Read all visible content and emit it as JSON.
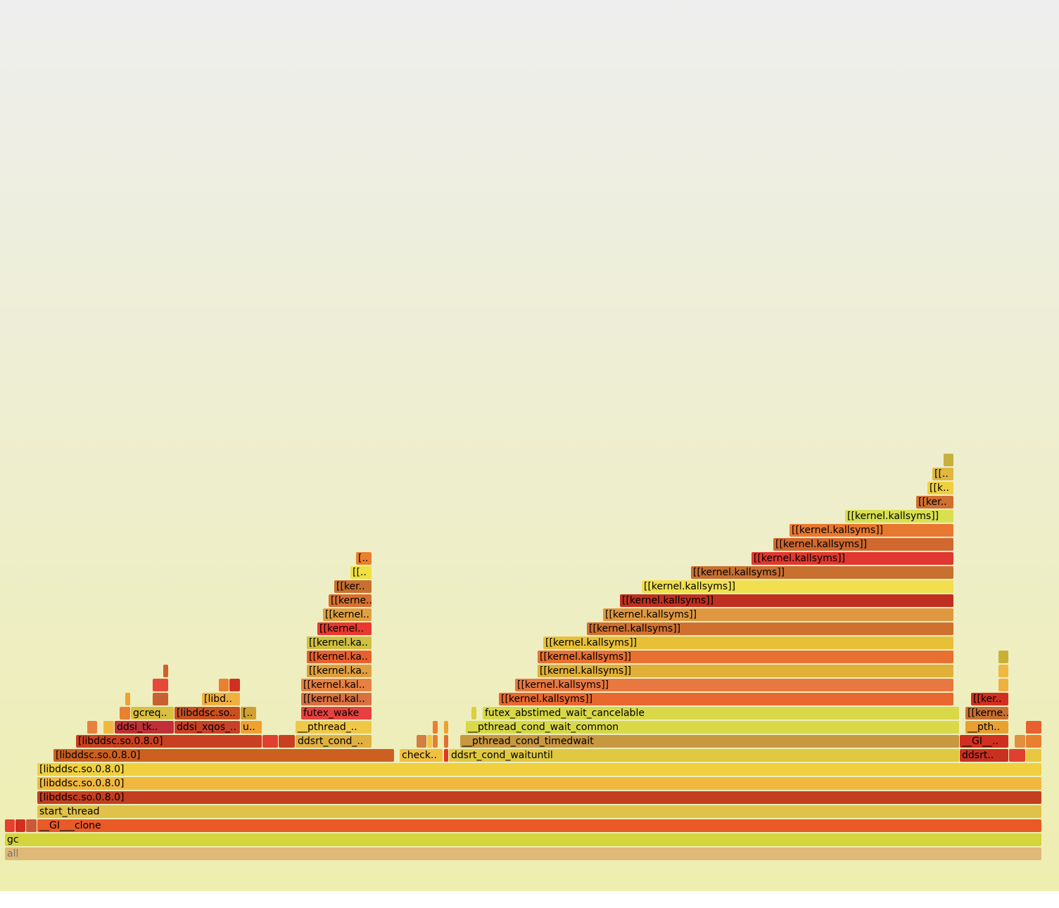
{
  "chart_data": {
    "type": "flamegraph",
    "xlim": [
      0,
      1474
    ],
    "frames": [
      {
        "depth": 0,
        "start": 0,
        "width": 1474,
        "color": "#e0b878",
        "name": "all"
      },
      {
        "depth": 1,
        "start": 0,
        "width": 1474,
        "color": "#d4d43c",
        "name": "gc"
      },
      {
        "depth": 2,
        "start": 0,
        "width": 15,
        "color": "#e84030"
      },
      {
        "depth": 2,
        "start": 15,
        "width": 15,
        "color": "#d03020"
      },
      {
        "depth": 2,
        "start": 30,
        "width": 16,
        "color": "#c85a38"
      },
      {
        "depth": 2,
        "start": 46,
        "width": 1428,
        "color": "#e85a28",
        "name": "__GI___clone"
      },
      {
        "depth": 3,
        "start": 46,
        "width": 1428,
        "color": "#e0c24a",
        "name": "start_thread"
      },
      {
        "depth": 4,
        "start": 46,
        "width": 1428,
        "color": "#c43e20",
        "name": "[libddsc.so.0.8.0]"
      },
      {
        "depth": 5,
        "start": 46,
        "width": 1428,
        "color": "#f0b840",
        "name": "[libddsc.so.0.8.0]"
      },
      {
        "depth": 6,
        "start": 46,
        "width": 1428,
        "color": "#f0d040",
        "name": "[libddsc.so.0.8.0]"
      },
      {
        "depth": 7,
        "start": 69,
        "width": 485,
        "color": "#cc6020",
        "name": "[libddsc.so.0.8.0]"
      },
      {
        "depth": 7,
        "start": 561,
        "width": 62,
        "color": "#f0c040",
        "name": "check.."
      },
      {
        "depth": 7,
        "start": 624,
        "width": 7,
        "color": "#e03828"
      },
      {
        "depth": 7,
        "start": 631,
        "width": 726,
        "color": "#e0c840",
        "name": "ddsrt_cond_waituntil"
      },
      {
        "depth": 7,
        "start": 1357,
        "width": 70,
        "color": "#c83020",
        "name": "ddsrt.."
      },
      {
        "depth": 7,
        "start": 1427,
        "width": 24,
        "color": "#e04030"
      },
      {
        "depth": 7,
        "start": 1451,
        "width": 23,
        "color": "#e8c840"
      },
      {
        "depth": 8,
        "start": 101,
        "width": 265,
        "color": "#c84020",
        "name": "[libddsc.so.0.8.0]"
      },
      {
        "depth": 8,
        "start": 366,
        "width": 23,
        "color": "#e04030"
      },
      {
        "depth": 8,
        "start": 389,
        "width": 24,
        "color": "#c84020"
      },
      {
        "depth": 8,
        "start": 413,
        "width": 109,
        "color": "#e0b040",
        "name": "ddsrt_cond_.."
      },
      {
        "depth": 8,
        "start": 585,
        "width": 15,
        "color": "#d08040"
      },
      {
        "depth": 8,
        "start": 600,
        "width": 8,
        "color": "#f0c840"
      },
      {
        "depth": 8,
        "start": 608,
        "width": 8,
        "color": "#e88030"
      },
      {
        "depth": 8,
        "start": 624,
        "width": 7,
        "color": "#e07030"
      },
      {
        "depth": 8,
        "start": 647,
        "width": 710,
        "color": "#c89840",
        "name": "__pthread_cond_timedwait"
      },
      {
        "depth": 8,
        "start": 1357,
        "width": 70,
        "color": "#d03020",
        "name": "__GI__.."
      },
      {
        "depth": 8,
        "start": 1435,
        "width": 16,
        "color": "#e09040"
      },
      {
        "depth": 8,
        "start": 1451,
        "width": 23,
        "color": "#e88030"
      },
      {
        "depth": 9,
        "start": 117,
        "width": 15,
        "color": "#e88040"
      },
      {
        "depth": 9,
        "start": 140,
        "width": 16,
        "color": "#f0b840"
      },
      {
        "depth": 9,
        "start": 156,
        "width": 85,
        "color": "#c03038",
        "name": "ddsi_tk.."
      },
      {
        "depth": 9,
        "start": 241,
        "width": 94,
        "color": "#c84028",
        "name": "ddsi_xqos_.."
      },
      {
        "depth": 9,
        "start": 335,
        "width": 31,
        "color": "#f0a030",
        "name": "u.."
      },
      {
        "depth": 9,
        "start": 413,
        "width": 109,
        "color": "#f0c848",
        "name": "__pthread_.."
      },
      {
        "depth": 9,
        "start": 608,
        "width": 8,
        "color": "#e88030"
      },
      {
        "depth": 9,
        "start": 624,
        "width": 7,
        "color": "#f0a030"
      },
      {
        "depth": 9,
        "start": 655,
        "width": 702,
        "color": "#d8d848",
        "name": "__pthread_cond_wait_common"
      },
      {
        "depth": 9,
        "start": 1365,
        "width": 62,
        "color": "#e8a030",
        "name": "__pth.."
      },
      {
        "depth": 9,
        "start": 1451,
        "width": 23,
        "color": "#e86030"
      },
      {
        "depth": 10,
        "start": 163,
        "width": 16,
        "color": "#e88030"
      },
      {
        "depth": 10,
        "start": 179,
        "width": 62,
        "color": "#d8c040",
        "name": "gcreq.."
      },
      {
        "depth": 10,
        "start": 241,
        "width": 94,
        "color": "#c85020",
        "name": "[libddsc.so.."
      },
      {
        "depth": 10,
        "start": 335,
        "width": 23,
        "color": "#d0a030",
        "name": "[.."
      },
      {
        "depth": 10,
        "start": 421,
        "width": 101,
        "color": "#e84040",
        "name": "futex_wake"
      },
      {
        "depth": 10,
        "start": 663,
        "width": 8,
        "color": "#d8d040"
      },
      {
        "depth": 10,
        "start": 679,
        "width": 678,
        "color": "#d8d848",
        "name": "futex_abstimed_wait_cancelable"
      },
      {
        "depth": 10,
        "start": 1365,
        "width": 62,
        "color": "#c87030",
        "name": "[[kerne.."
      },
      {
        "depth": 11,
        "start": 171,
        "width": 8,
        "color": "#f0a030"
      },
      {
        "depth": 11,
        "start": 210,
        "width": 23,
        "color": "#c86030"
      },
      {
        "depth": 11,
        "start": 280,
        "width": 55,
        "color": "#f0b040",
        "name": "[libd.."
      },
      {
        "depth": 11,
        "start": 421,
        "width": 101,
        "color": "#d87040",
        "name": "[[kernel.kal.."
      },
      {
        "depth": 11,
        "start": 702,
        "width": 647,
        "color": "#e86830",
        "name": "[[kernel.kallsyms]]"
      },
      {
        "depth": 11,
        "start": 1373,
        "width": 54,
        "color": "#d03020",
        "name": "[[ker.."
      },
      {
        "depth": 12,
        "start": 210,
        "width": 23,
        "color": "#e84838"
      },
      {
        "depth": 12,
        "start": 304,
        "width": 15,
        "color": "#e88030"
      },
      {
        "depth": 12,
        "start": 319,
        "width": 16,
        "color": "#d03020"
      },
      {
        "depth": 12,
        "start": 421,
        "width": 101,
        "color": "#e88040",
        "name": "[[kernel.kal.."
      },
      {
        "depth": 12,
        "start": 725,
        "width": 624,
        "color": "#e87840",
        "name": "[[kernel.kallsyms]]"
      },
      {
        "depth": 12,
        "start": 1412,
        "width": 15,
        "color": "#f0b040"
      },
      {
        "depth": 13,
        "start": 225,
        "width": 8,
        "color": "#d06030"
      },
      {
        "depth": 13,
        "start": 429,
        "width": 93,
        "color": "#e0a040",
        "name": "[[kernel.ka.."
      },
      {
        "depth": 13,
        "start": 757,
        "width": 592,
        "color": "#e0b038",
        "name": "[[kernel.kallsyms]]"
      },
      {
        "depth": 13,
        "start": 1412,
        "width": 15,
        "color": "#f0b840"
      },
      {
        "depth": 14,
        "start": 429,
        "width": 93,
        "color": "#e86030",
        "name": "[[kernel.ka.."
      },
      {
        "depth": 14,
        "start": 757,
        "width": 592,
        "color": "#e87030",
        "name": "[[kernel.kallsyms]]"
      },
      {
        "depth": 14,
        "start": 1412,
        "width": 15,
        "color": "#c8b038"
      },
      {
        "depth": 15,
        "start": 429,
        "width": 93,
        "color": "#d0c040",
        "name": "[[kernel.ka.."
      },
      {
        "depth": 15,
        "start": 765,
        "width": 584,
        "color": "#e8c038",
        "name": "[[kernel.kallsyms]]"
      },
      {
        "depth": 16,
        "start": 444,
        "width": 78,
        "color": "#e83830",
        "name": "[[kernel.."
      },
      {
        "depth": 16,
        "start": 827,
        "width": 522,
        "color": "#d07030",
        "name": "[[kernel.kallsyms]]"
      },
      {
        "depth": 17,
        "start": 452,
        "width": 70,
        "color": "#e0a040",
        "name": "[[kernel.."
      },
      {
        "depth": 17,
        "start": 850,
        "width": 499,
        "color": "#e09840",
        "name": "[[kernel.kallsyms]]"
      },
      {
        "depth": 18,
        "start": 460,
        "width": 62,
        "color": "#d87030",
        "name": "[[kerne.."
      },
      {
        "depth": 18,
        "start": 874,
        "width": 475,
        "color": "#c03020",
        "name": "[[kernel.kallsyms]]"
      },
      {
        "depth": 19,
        "start": 468,
        "width": 54,
        "color": "#c87030",
        "name": "[[ker.."
      },
      {
        "depth": 19,
        "start": 905,
        "width": 444,
        "color": "#f0e050",
        "name": "[[kernel.kallsyms]]"
      },
      {
        "depth": 20,
        "start": 491,
        "width": 31,
        "color": "#f0e040",
        "name": "[[.."
      },
      {
        "depth": 20,
        "start": 975,
        "width": 374,
        "color": "#c87030",
        "name": "[[kernel.kallsyms]]"
      },
      {
        "depth": 21,
        "start": 499,
        "width": 23,
        "color": "#e88030",
        "name": "[.."
      },
      {
        "depth": 21,
        "start": 1061,
        "width": 288,
        "color": "#e03830",
        "name": "[[kernel.kallsyms]]"
      },
      {
        "depth": 22,
        "start": 1092,
        "width": 257,
        "color": "#d06830",
        "name": "[[kernel.kallsyms]]"
      },
      {
        "depth": 23,
        "start": 1115,
        "width": 234,
        "color": "#e87830",
        "name": "[[kernel.kallsyms]]"
      },
      {
        "depth": 24,
        "start": 1194,
        "width": 155,
        "color": "#d8e050",
        "name": "[[kernel.kallsyms]]"
      },
      {
        "depth": 25,
        "start": 1295,
        "width": 54,
        "color": "#d07030",
        "name": "[[ker.."
      },
      {
        "depth": 26,
        "start": 1311,
        "width": 38,
        "color": "#f0d040",
        "name": "[[k.."
      },
      {
        "depth": 27,
        "start": 1318,
        "width": 31,
        "color": "#e0b840",
        "name": "[[.."
      },
      {
        "depth": 28,
        "start": 1334,
        "width": 15,
        "color": "#c8b040"
      }
    ]
  }
}
